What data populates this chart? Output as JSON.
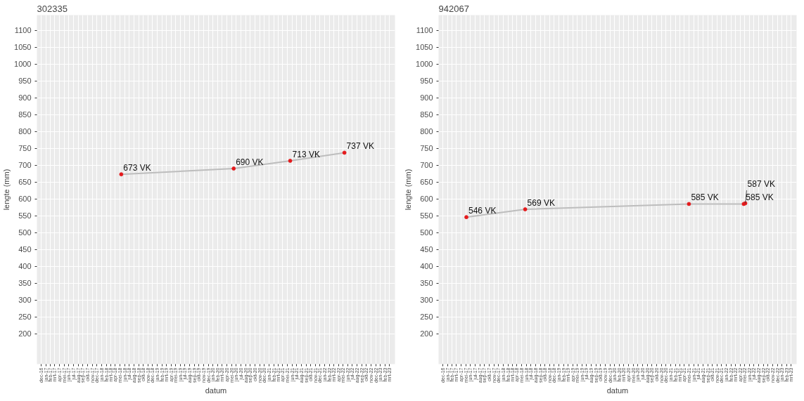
{
  "chart_data": [
    {
      "type": "line",
      "title": "302335",
      "xlabel": "datum",
      "ylabel": "lengte (mm)",
      "x": [
        "2018-05-10",
        "2020-05-15",
        "2021-05-20",
        "2022-05-10"
      ],
      "series": [
        {
          "color": "#bdbdbd",
          "marker": "none",
          "values": [
            673,
            690,
            713,
            737
          ]
        },
        {
          "type": "scatter",
          "marker": "circle",
          "color": "#e41a1c",
          "values": [
            673,
            690,
            713,
            737
          ],
          "value_labels": [
            "673 VK",
            "690 VK",
            "713 VK",
            "737 VK"
          ]
        }
      ],
      "xlim": [
        "2016-11-04",
        "2023-04-06"
      ],
      "ylim": [
        110,
        1145
      ],
      "yticks": [
        200,
        250,
        300,
        350,
        400,
        450,
        500,
        550,
        600,
        650,
        700,
        750,
        800,
        850,
        900,
        950,
        1000,
        1050,
        1100
      ],
      "xticks": [
        {
          "value": "2016-12",
          "label": "dec-16"
        },
        {
          "value": "2017-01",
          "label": "jan-17"
        },
        {
          "value": "2017-02",
          "label": "feb-17"
        },
        {
          "value": "2017-03",
          "label": "mrt-17"
        },
        {
          "value": "2017-04",
          "label": "apr-17"
        },
        {
          "value": "2017-05",
          "label": "mei-17"
        },
        {
          "value": "2017-06",
          "label": "jun-17"
        },
        {
          "value": "2017-07",
          "label": "jul-17"
        },
        {
          "value": "2017-08",
          "label": "aug-17"
        },
        {
          "value": "2017-09",
          "label": "sep-17"
        },
        {
          "value": "2017-10",
          "label": "okt-17"
        },
        {
          "value": "2017-11",
          "label": "nov-17"
        },
        {
          "value": "2017-12",
          "label": "dec-17"
        },
        {
          "value": "2018-01",
          "label": "jan-18"
        },
        {
          "value": "2018-02",
          "label": "feb-18"
        },
        {
          "value": "2018-03",
          "label": "mrt-18"
        },
        {
          "value": "2018-04",
          "label": "apr-18"
        },
        {
          "value": "2018-05",
          "label": "mei-18"
        },
        {
          "value": "2018-06",
          "label": "jun-18"
        },
        {
          "value": "2018-07",
          "label": "jul-18"
        },
        {
          "value": "2018-08",
          "label": "aug-18"
        },
        {
          "value": "2018-09",
          "label": "sep-18"
        },
        {
          "value": "2018-10",
          "label": "okt-18"
        },
        {
          "value": "2018-11",
          "label": "nov-18"
        },
        {
          "value": "2018-12",
          "label": "dec-18"
        },
        {
          "value": "2019-01",
          "label": "jan-19"
        },
        {
          "value": "2019-02",
          "label": "feb-19"
        },
        {
          "value": "2019-03",
          "label": "mrt-19"
        },
        {
          "value": "2019-04",
          "label": "apr-19"
        },
        {
          "value": "2019-05",
          "label": "mei-19"
        },
        {
          "value": "2019-06",
          "label": "jun-19"
        },
        {
          "value": "2019-07",
          "label": "jul-19"
        },
        {
          "value": "2019-08",
          "label": "aug-19"
        },
        {
          "value": "2019-09",
          "label": "sep-19"
        },
        {
          "value": "2019-10",
          "label": "okt-19"
        },
        {
          "value": "2019-11",
          "label": "nov-19"
        },
        {
          "value": "2019-12",
          "label": "dec-19"
        },
        {
          "value": "2020-01",
          "label": "jan-20"
        },
        {
          "value": "2020-02",
          "label": "feb-20"
        },
        {
          "value": "2020-03",
          "label": "mrt-20"
        },
        {
          "value": "2020-04",
          "label": "apr-20"
        },
        {
          "value": "2020-05",
          "label": "mei-20"
        },
        {
          "value": "2020-06",
          "label": "jun-20"
        },
        {
          "value": "2020-07",
          "label": "jul-20"
        },
        {
          "value": "2020-08",
          "label": "aug-20"
        },
        {
          "value": "2020-09",
          "label": "sep-20"
        },
        {
          "value": "2020-10",
          "label": "okt-20"
        },
        {
          "value": "2020-11",
          "label": "nov-20"
        },
        {
          "value": "2020-12",
          "label": "dec-20"
        },
        {
          "value": "2021-01",
          "label": "jan-21"
        },
        {
          "value": "2021-02",
          "label": "feb-21"
        },
        {
          "value": "2021-03",
          "label": "mrt-21"
        },
        {
          "value": "2021-04",
          "label": "apr-21"
        },
        {
          "value": "2021-05",
          "label": "mei-21"
        },
        {
          "value": "2021-06",
          "label": "jun-21"
        },
        {
          "value": "2021-07",
          "label": "jul-21"
        },
        {
          "value": "2021-08",
          "label": "aug-21"
        },
        {
          "value": "2021-09",
          "label": "sep-21"
        },
        {
          "value": "2021-10",
          "label": "okt-21"
        },
        {
          "value": "2021-11",
          "label": "nov-21"
        },
        {
          "value": "2021-12",
          "label": "dec-21"
        },
        {
          "value": "2022-01",
          "label": "jan-22"
        },
        {
          "value": "2022-02",
          "label": "feb-22"
        },
        {
          "value": "2022-03",
          "label": "mrt-22"
        },
        {
          "value": "2022-04",
          "label": "apr-22"
        },
        {
          "value": "2022-05",
          "label": "mei-22"
        },
        {
          "value": "2022-06",
          "label": "jun-22"
        },
        {
          "value": "2022-07",
          "label": "jul-22"
        },
        {
          "value": "2022-08",
          "label": "aug-22"
        },
        {
          "value": "2022-09",
          "label": "sep-22"
        },
        {
          "value": "2022-10",
          "label": "okt-22"
        },
        {
          "value": "2022-11",
          "label": "nov-22"
        },
        {
          "value": "2022-12",
          "label": "dec-22"
        },
        {
          "value": "2023-01",
          "label": "jan-23"
        },
        {
          "value": "2023-02",
          "label": "feb-23"
        },
        {
          "value": "2023-03",
          "label": "mrt-23"
        }
      ],
      "grid": true
    },
    {
      "type": "line",
      "title": "942067",
      "xlabel": "datum",
      "ylabel": "lengte (mm)",
      "x": [
        "2017-05-05",
        "2018-05-25",
        "2021-05-01",
        "2022-04-25",
        "2022-05-05"
      ],
      "series": [
        {
          "color": "#bdbdbd",
          "marker": "none",
          "values": [
            546,
            569,
            585,
            585,
            587
          ]
        },
        {
          "type": "scatter",
          "marker": "circle",
          "color": "#e41a1c",
          "values": [
            546,
            569,
            585,
            585,
            587
          ],
          "value_labels": [
            "546 VK",
            "569 VK",
            "585 VK",
            "585 VK",
            "587 VK"
          ]
        }
      ],
      "xlim": [
        "2016-11-04",
        "2023-04-06"
      ],
      "ylim": [
        110,
        1145
      ],
      "yticks": [
        200,
        250,
        300,
        350,
        400,
        450,
        500,
        550,
        600,
        650,
        700,
        750,
        800,
        850,
        900,
        950,
        1000,
        1050,
        1100
      ],
      "xticks": [
        {
          "value": "2016-12",
          "label": "dec-16"
        },
        {
          "value": "2017-01",
          "label": "jan-17"
        },
        {
          "value": "2017-02",
          "label": "feb-17"
        },
        {
          "value": "2017-03",
          "label": "mrt-17"
        },
        {
          "value": "2017-04",
          "label": "apr-17"
        },
        {
          "value": "2017-05",
          "label": "mei-17"
        },
        {
          "value": "2017-06",
          "label": "jun-17"
        },
        {
          "value": "2017-07",
          "label": "jul-17"
        },
        {
          "value": "2017-08",
          "label": "aug-17"
        },
        {
          "value": "2017-09",
          "label": "sep-17"
        },
        {
          "value": "2017-10",
          "label": "okt-17"
        },
        {
          "value": "2017-11",
          "label": "nov-17"
        },
        {
          "value": "2017-12",
          "label": "dec-17"
        },
        {
          "value": "2018-01",
          "label": "jan-18"
        },
        {
          "value": "2018-02",
          "label": "feb-18"
        },
        {
          "value": "2018-03",
          "label": "mrt-18"
        },
        {
          "value": "2018-04",
          "label": "apr-18"
        },
        {
          "value": "2018-05",
          "label": "mei-18"
        },
        {
          "value": "2018-06",
          "label": "jun-18"
        },
        {
          "value": "2018-07",
          "label": "jul-18"
        },
        {
          "value": "2018-08",
          "label": "aug-18"
        },
        {
          "value": "2018-09",
          "label": "sep-18"
        },
        {
          "value": "2018-10",
          "label": "okt-18"
        },
        {
          "value": "2018-11",
          "label": "nov-18"
        },
        {
          "value": "2018-12",
          "label": "dec-18"
        },
        {
          "value": "2019-01",
          "label": "jan-19"
        },
        {
          "value": "2019-02",
          "label": "feb-19"
        },
        {
          "value": "2019-03",
          "label": "mrt-19"
        },
        {
          "value": "2019-04",
          "label": "apr-19"
        },
        {
          "value": "2019-05",
          "label": "mei-19"
        },
        {
          "value": "2019-06",
          "label": "jun-19"
        },
        {
          "value": "2019-07",
          "label": "jul-19"
        },
        {
          "value": "2019-08",
          "label": "aug-19"
        },
        {
          "value": "2019-09",
          "label": "sep-19"
        },
        {
          "value": "2019-10",
          "label": "okt-19"
        },
        {
          "value": "2019-11",
          "label": "nov-19"
        },
        {
          "value": "2019-12",
          "label": "dec-19"
        },
        {
          "value": "2020-01",
          "label": "jan-20"
        },
        {
          "value": "2020-02",
          "label": "feb-20"
        },
        {
          "value": "2020-03",
          "label": "mrt-20"
        },
        {
          "value": "2020-04",
          "label": "apr-20"
        },
        {
          "value": "2020-05",
          "label": "mei-20"
        },
        {
          "value": "2020-06",
          "label": "jun-20"
        },
        {
          "value": "2020-07",
          "label": "jul-20"
        },
        {
          "value": "2020-08",
          "label": "aug-20"
        },
        {
          "value": "2020-09",
          "label": "sep-20"
        },
        {
          "value": "2020-10",
          "label": "okt-20"
        },
        {
          "value": "2020-11",
          "label": "nov-20"
        },
        {
          "value": "2020-12",
          "label": "dec-20"
        },
        {
          "value": "2021-01",
          "label": "jan-21"
        },
        {
          "value": "2021-02",
          "label": "feb-21"
        },
        {
          "value": "2021-03",
          "label": "mrt-21"
        },
        {
          "value": "2021-04",
          "label": "apr-21"
        },
        {
          "value": "2021-05",
          "label": "mei-21"
        },
        {
          "value": "2021-06",
          "label": "jun-21"
        },
        {
          "value": "2021-07",
          "label": "jul-21"
        },
        {
          "value": "2021-08",
          "label": "aug-21"
        },
        {
          "value": "2021-09",
          "label": "sep-21"
        },
        {
          "value": "2021-10",
          "label": "okt-21"
        },
        {
          "value": "2021-11",
          "label": "nov-21"
        },
        {
          "value": "2021-12",
          "label": "dec-21"
        },
        {
          "value": "2022-01",
          "label": "jan-22"
        },
        {
          "value": "2022-02",
          "label": "feb-22"
        },
        {
          "value": "2022-03",
          "label": "mrt-22"
        },
        {
          "value": "2022-04",
          "label": "apr-22"
        },
        {
          "value": "2022-05",
          "label": "mei-22"
        },
        {
          "value": "2022-06",
          "label": "jun-22"
        },
        {
          "value": "2022-07",
          "label": "jul-22"
        },
        {
          "value": "2022-08",
          "label": "aug-22"
        },
        {
          "value": "2022-09",
          "label": "sep-22"
        },
        {
          "value": "2022-10",
          "label": "okt-22"
        },
        {
          "value": "2022-11",
          "label": "nov-22"
        },
        {
          "value": "2022-12",
          "label": "dec-22"
        },
        {
          "value": "2023-01",
          "label": "jan-23"
        },
        {
          "value": "2023-02",
          "label": "feb-23"
        },
        {
          "value": "2023-03",
          "label": "mrt-23"
        }
      ],
      "grid": true
    }
  ]
}
